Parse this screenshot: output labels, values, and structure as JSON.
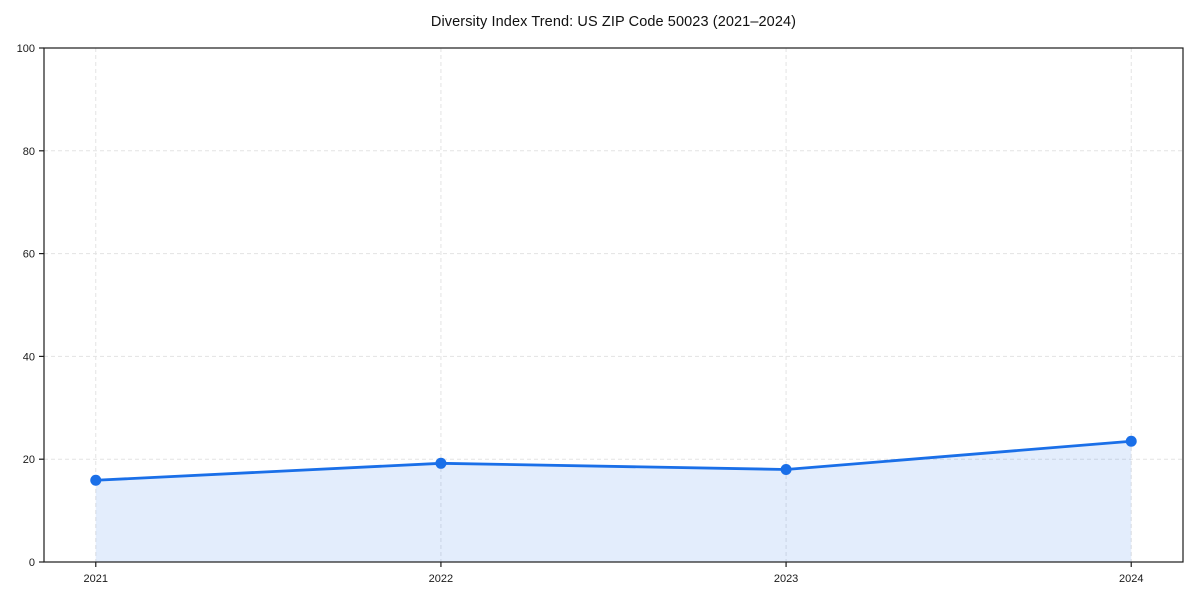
{
  "figure": {
    "title": "Diversity Index Trend: US ZIP Code 50023 (2021–2024)"
  },
  "chart_data": {
    "type": "line",
    "title": "Diversity Index Trend: US ZIP Code 50023 (2021–2024)",
    "categories": [
      "2021",
      "2022",
      "2023",
      "2024"
    ],
    "series": [
      {
        "name": "Diversity Index",
        "values": [
          15.9,
          19.2,
          18.0,
          23.5
        ]
      }
    ],
    "xlabel": "",
    "ylabel": "",
    "ylim": [
      0,
      100
    ],
    "yticks": [
      0,
      20,
      40,
      60,
      80,
      100
    ],
    "grid": true,
    "grid_style": "dashed",
    "legend_position": "none",
    "area_fill": true,
    "markers": true,
    "colors": {
      "line": "#1a6fe8",
      "marker": "#1a6fe8",
      "area": "rgba(26,111,232,0.12)",
      "grid": "#e3e3e3",
      "spine": "#1c1c1c",
      "tick_text": "#1a1a1a",
      "background": "#ffffff"
    }
  }
}
